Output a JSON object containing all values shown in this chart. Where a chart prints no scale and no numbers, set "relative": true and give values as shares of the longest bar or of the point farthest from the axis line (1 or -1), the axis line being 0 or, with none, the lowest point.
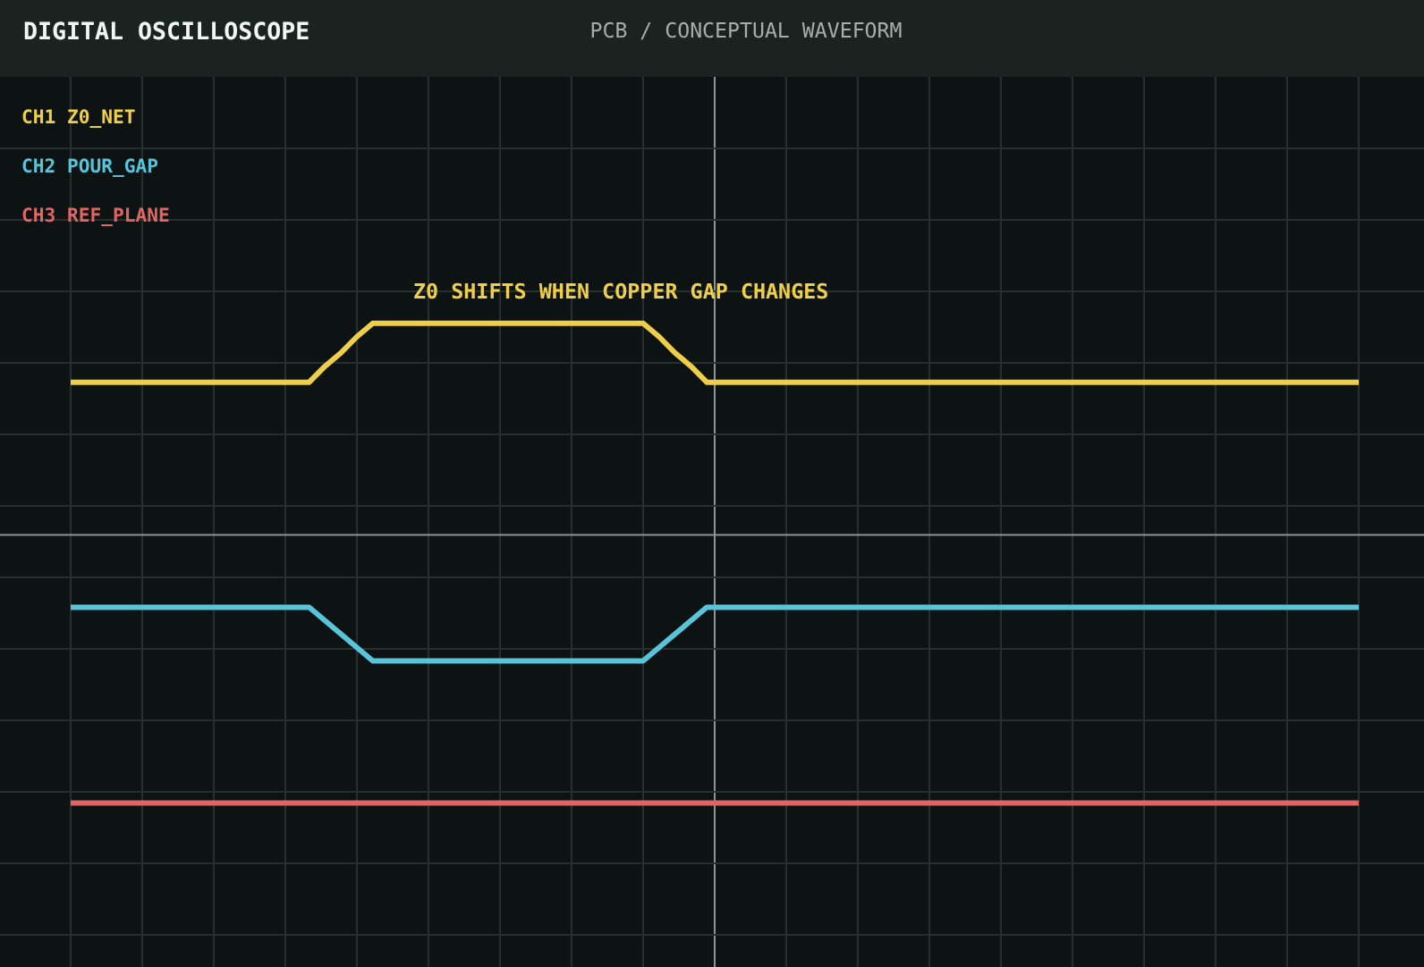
{
  "chart_data": {
    "type": "line",
    "title": "DIGITAL OSCILLOSCOPE",
    "subtitle": "PCB / CONCEPTUAL WAVEFORM",
    "categories": [
      null,
      null,
      null,
      null,
      null,
      null,
      null,
      null,
      null,
      null,
      null,
      null,
      null,
      null,
      null,
      null,
      null,
      null,
      null,
      null,
      null,
      null,
      null,
      null,
      null,
      null,
      null,
      null,
      null,
      null,
      null,
      null,
      null,
      null,
      null,
      null,
      null,
      null,
      null,
      null,
      null,
      null,
      null,
      null,
      null,
      null,
      null,
      null,
      null,
      null,
      null,
      null,
      null,
      null,
      null,
      null,
      null,
      null,
      null,
      null,
      null,
      null,
      null,
      null,
      null,
      null,
      null,
      null,
      null,
      null,
      null,
      null,
      null,
      null,
      null,
      null,
      null,
      null,
      null,
      null,
      null,
      null
    ],
    "relative": true,
    "grid": true,
    "legend": "top left",
    "annotations": [
      "Z0 SHIFTS WHEN COPPER GAP CHANGES"
    ],
    "series": [
      {
        "name": "CH1 Z0_NET",
        "color": "#f0cf48",
        "values": [
          0.57,
          0.57,
          0.57,
          0.57,
          0.57,
          0.57,
          0.57,
          0.57,
          0.57,
          0.57,
          0.57,
          0.57,
          0.57,
          0.57,
          0.57,
          0.57,
          0.63,
          0.68,
          0.74,
          0.79,
          0.79,
          0.79,
          0.79,
          0.79,
          0.79,
          0.79,
          0.79,
          0.79,
          0.79,
          0.79,
          0.79,
          0.79,
          0.79,
          0.79,
          0.79,
          0.79,
          0.79,
          0.74,
          0.68,
          0.63,
          0.57,
          0.57,
          0.57,
          0.57,
          0.57,
          0.57,
          0.57,
          0.57,
          0.57,
          0.57,
          0.57,
          0.57,
          0.57,
          0.57,
          0.57,
          0.57,
          0.57,
          0.57,
          0.57,
          0.57,
          0.57,
          0.57,
          0.57,
          0.57,
          0.57,
          0.57,
          0.57,
          0.57,
          0.57,
          0.57,
          0.57,
          0.57,
          0.57,
          0.57,
          0.57,
          0.57,
          0.57,
          0.57,
          0.57,
          0.57,
          0.57,
          0.57
        ]
      },
      {
        "name": "CH2 POUR_GAP",
        "color": "#58c4d9",
        "values": [
          -0.27,
          -0.27,
          -0.27,
          -0.27,
          -0.27,
          -0.27,
          -0.27,
          -0.27,
          -0.27,
          -0.27,
          -0.27,
          -0.27,
          -0.27,
          -0.27,
          -0.27,
          -0.27,
          -0.32,
          -0.37,
          -0.42,
          -0.47,
          -0.47,
          -0.47,
          -0.47,
          -0.47,
          -0.47,
          -0.47,
          -0.47,
          -0.47,
          -0.47,
          -0.47,
          -0.47,
          -0.47,
          -0.47,
          -0.47,
          -0.47,
          -0.47,
          -0.47,
          -0.42,
          -0.37,
          -0.32,
          -0.27,
          -0.27,
          -0.27,
          -0.27,
          -0.27,
          -0.27,
          -0.27,
          -0.27,
          -0.27,
          -0.27,
          -0.27,
          -0.27,
          -0.27,
          -0.27,
          -0.27,
          -0.27,
          -0.27,
          -0.27,
          -0.27,
          -0.27,
          -0.27,
          -0.27,
          -0.27,
          -0.27,
          -0.27,
          -0.27,
          -0.27,
          -0.27,
          -0.27,
          -0.27,
          -0.27,
          -0.27,
          -0.27,
          -0.27,
          -0.27,
          -0.27,
          -0.27,
          -0.27,
          -0.27,
          -0.27,
          -0.27,
          -0.27
        ]
      },
      {
        "name": "CH3 REF_PLANE",
        "color": "#e06565",
        "values": [
          -1,
          -1,
          -1,
          -1,
          -1,
          -1,
          -1,
          -1,
          -1,
          -1,
          -1,
          -1,
          -1,
          -1,
          -1,
          -1,
          -1,
          -1,
          -1,
          -1,
          -1,
          -1,
          -1,
          -1,
          -1,
          -1,
          -1,
          -1,
          -1,
          -1,
          -1,
          -1,
          -1,
          -1,
          -1,
          -1,
          -1,
          -1,
          -1,
          -1,
          -1,
          -1,
          -1,
          -1,
          -1,
          -1,
          -1,
          -1,
          -1,
          -1,
          -1,
          -1,
          -1,
          -1,
          -1,
          -1,
          -1,
          -1,
          -1,
          -1,
          -1,
          -1,
          -1,
          -1,
          -1,
          -1,
          -1,
          -1,
          -1,
          -1,
          -1,
          -1,
          -1,
          -1,
          -1,
          -1,
          -1,
          -1,
          -1,
          -1,
          -1,
          -1
        ]
      }
    ]
  }
}
